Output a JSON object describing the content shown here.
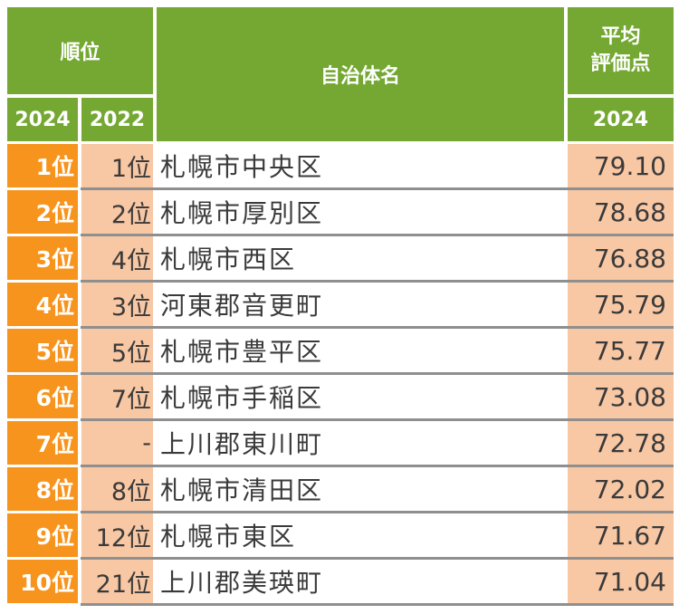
{
  "header": {
    "rank_label": "順位",
    "municipality_label": "自治体名",
    "score_label_line1": "平均",
    "score_label_line2": "評価点",
    "year_2024": "2024",
    "year_2022": "2022",
    "score_year": "2024"
  },
  "rows": [
    {
      "rank_2024": "1位",
      "rank_2022": "1位",
      "name": "札幌市中央区",
      "score": "79.10"
    },
    {
      "rank_2024": "2位",
      "rank_2022": "2位",
      "name": "札幌市厚別区",
      "score": "78.68"
    },
    {
      "rank_2024": "3位",
      "rank_2022": "4位",
      "name": "札幌市西区",
      "score": "76.88"
    },
    {
      "rank_2024": "4位",
      "rank_2022": "3位",
      "name": "河東郡音更町",
      "score": "75.79"
    },
    {
      "rank_2024": "5位",
      "rank_2022": "5位",
      "name": "札幌市豊平区",
      "score": "75.77"
    },
    {
      "rank_2024": "6位",
      "rank_2022": "7位",
      "name": "札幌市手稲区",
      "score": "73.08"
    },
    {
      "rank_2024": "7位",
      "rank_2022": "-",
      "name": "上川郡東川町",
      "score": "72.78"
    },
    {
      "rank_2024": "8位",
      "rank_2022": "8位",
      "name": "札幌市清田区",
      "score": "72.02"
    },
    {
      "rank_2024": "9位",
      "rank_2022": "12位",
      "name": "札幌市東区",
      "score": "71.67"
    },
    {
      "rank_2024": "10位",
      "rank_2022": "21位",
      "name": "上川郡美瑛町",
      "score": "71.04"
    }
  ]
}
